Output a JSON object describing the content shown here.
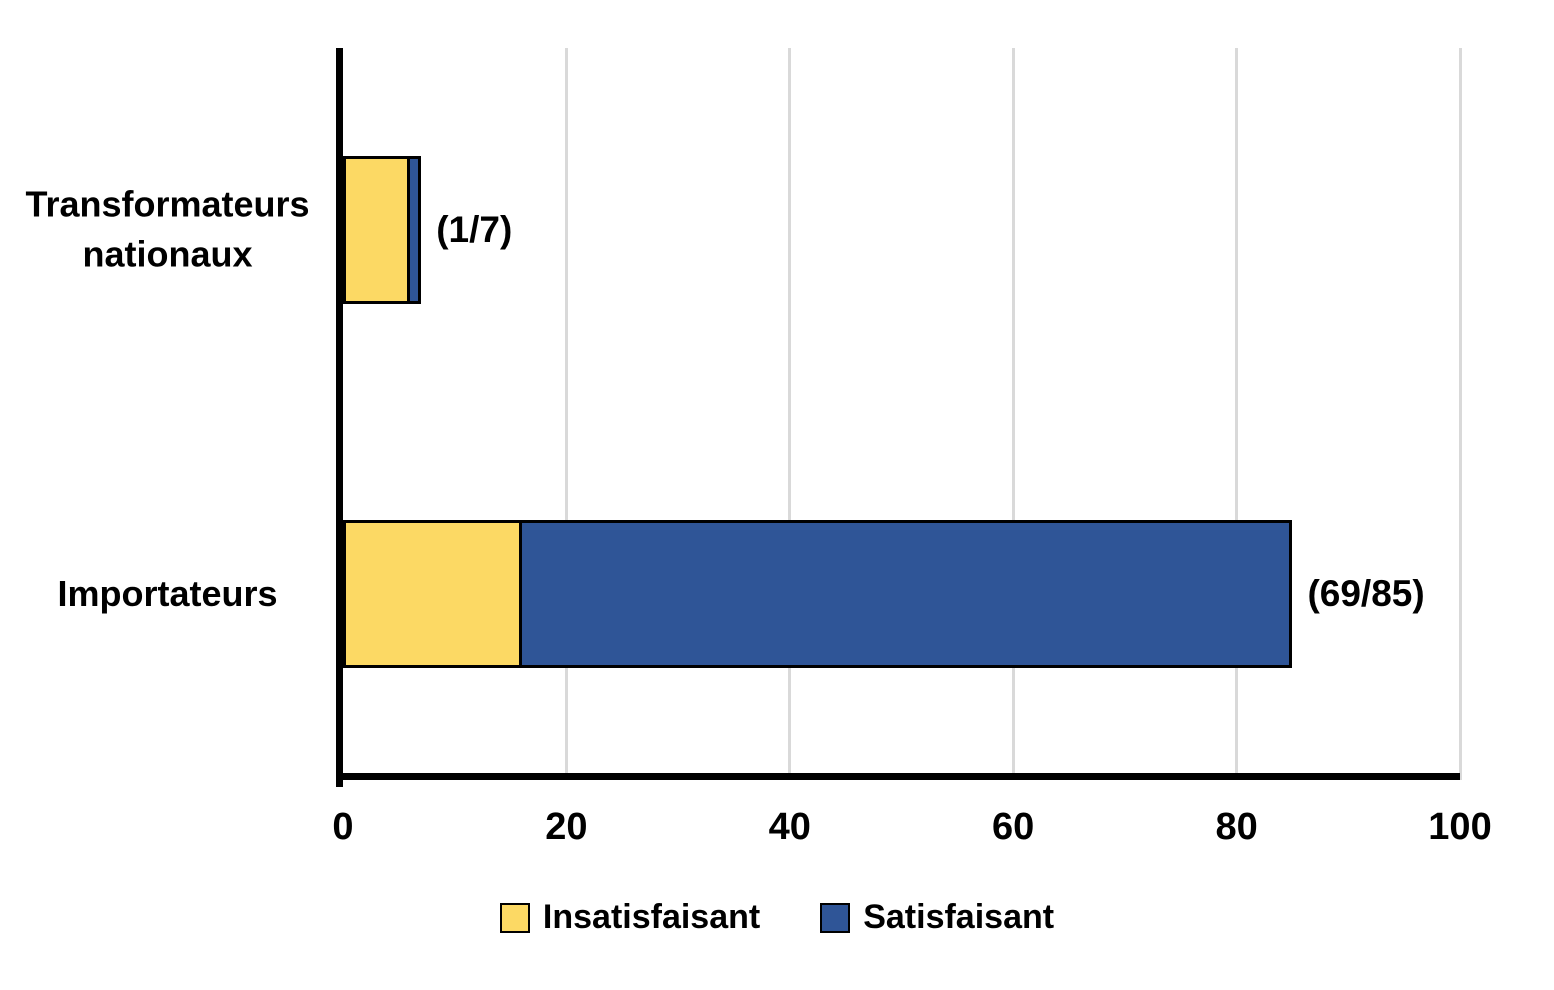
{
  "chart_data": {
    "type": "bar",
    "orientation": "horizontal",
    "stacked": true,
    "title": "",
    "xlabel": "",
    "ylabel": "",
    "categories": [
      "Transformateurs nationaux",
      "Importateurs"
    ],
    "series": [
      {
        "name": "Insatisfaisant",
        "color": "#FCD964",
        "values": [
          6,
          16
        ]
      },
      {
        "name": "Satisfaisant",
        "color": "#2F5597",
        "values": [
          1,
          69
        ]
      }
    ],
    "bar_totals": [
      7,
      85
    ],
    "bar_labels": [
      "(1/7)",
      "(69/85)"
    ],
    "xlim": [
      0,
      100
    ],
    "xticks": [
      0,
      20,
      40,
      60,
      80,
      100
    ],
    "grid": "vertical",
    "gridline_color": "#d9d9d9",
    "axis_color": "#000000",
    "legend_position": "bottom",
    "legend_items": [
      {
        "label": "Insatisfaisant",
        "color": "#FCD964"
      },
      {
        "label": "Satisfaisant",
        "color": "#2F5597"
      }
    ]
  }
}
